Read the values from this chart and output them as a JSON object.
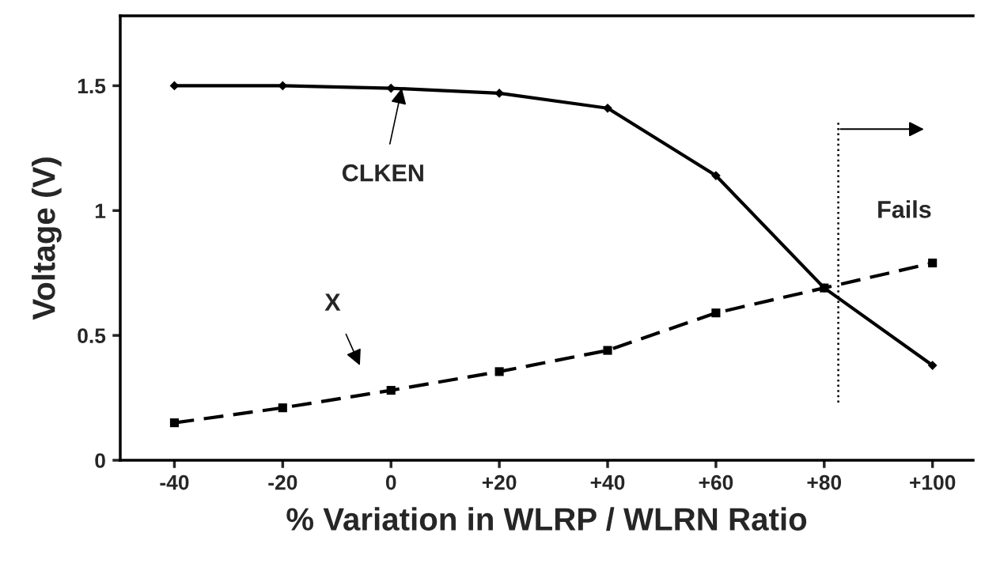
{
  "chart_data": {
    "type": "line",
    "xlabel": "% Variation in WLRP / WLRN Ratio",
    "ylabel": "Voltage (V)",
    "x": [
      -40,
      -20,
      0,
      20,
      40,
      60,
      80,
      100
    ],
    "series": [
      {
        "color": "#000000",
        "marker": "diamond",
        "line_style": "solid",
        "values": [
          1.5,
          1.5,
          1.49,
          1.47,
          1.41,
          1.14,
          0.69,
          0.38
        ]
      },
      {
        "color": "#000000",
        "marker": "square",
        "line_style": "dashed",
        "values": [
          0.15,
          0.21,
          0.28,
          0.355,
          0.44,
          0.59,
          0.69,
          0.79
        ]
      }
    ],
    "xlim": [
      -50,
      107.5
    ],
    "ylim": [
      0,
      1.78
    ],
    "xticks": [
      -40,
      -20,
      0,
      {
        "value": 20,
        "label": "+20"
      },
      {
        "value": 40,
        "label": "+40"
      },
      {
        "value": 60,
        "label": "+60"
      },
      {
        "value": 80,
        "label": "+80"
      },
      {
        "value": 100,
        "label": "+100"
      }
    ],
    "yticks": [
      0,
      0.5,
      1,
      1.5
    ],
    "ref_lines": [
      {
        "axis": "x",
        "value": 82.6,
        "label": "Fails",
        "line_style": "dotted",
        "color": "#000000"
      }
    ],
    "annotations": [
      {
        "text": "CLKEN",
        "x": 2,
        "y": 1.49
      },
      "X"
    ],
    "grid": false,
    "legend": false
  }
}
